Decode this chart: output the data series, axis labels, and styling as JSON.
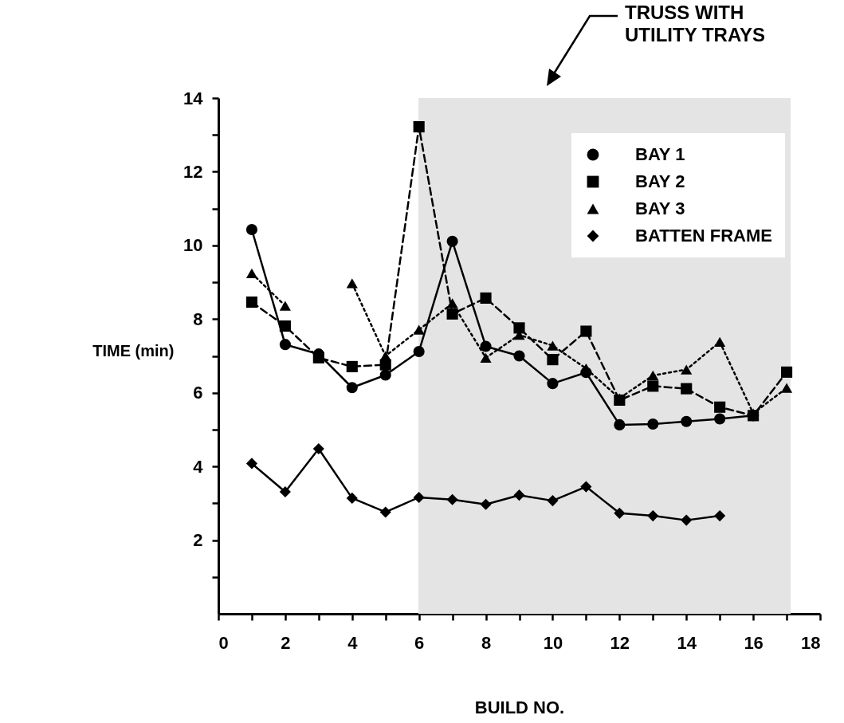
{
  "chart_data": {
    "type": "line",
    "xlabel": "BUILD NO.",
    "ylabel": "TIME (min)",
    "x": [
      1,
      2,
      3,
      4,
      5,
      6,
      7,
      8,
      9,
      10,
      11,
      12,
      13,
      14,
      15,
      16,
      17
    ],
    "series": [
      {
        "name": "BAY 1",
        "color": "#000000",
        "marker": "circle",
        "line_style": "solid",
        "values": [
          10.43,
          7.31,
          7.05,
          6.14,
          6.48,
          7.12,
          10.11,
          7.26,
          7.0,
          6.25,
          6.55,
          5.13,
          5.15,
          5.22,
          5.29,
          5.38,
          null
        ]
      },
      {
        "name": "BAY 2",
        "color": "#000000",
        "marker": "square",
        "line_style": "dashed",
        "values": [
          8.46,
          7.81,
          6.95,
          6.71,
          6.76,
          13.22,
          8.14,
          8.57,
          7.76,
          6.9,
          7.67,
          5.8,
          6.18,
          6.11,
          5.61,
          5.38,
          6.56
        ]
      },
      {
        "name": "BAY 3",
        "color": "#000000",
        "marker": "triangle",
        "line_style": "dotted",
        "values": [
          9.24,
          8.36,
          null,
          8.97,
          7.0,
          7.71,
          8.43,
          6.95,
          7.57,
          7.28,
          6.66,
          5.85,
          6.47,
          6.63,
          7.38,
          5.44,
          6.13
        ]
      },
      {
        "name": "BATTEN FRAME",
        "color": "#000000",
        "marker": "diamond",
        "line_style": "solid",
        "values": [
          4.08,
          3.31,
          4.48,
          3.14,
          2.76,
          3.16,
          3.1,
          2.97,
          3.22,
          3.07,
          3.45,
          2.73,
          2.66,
          2.54,
          2.66,
          null,
          null
        ]
      }
    ],
    "bands": [
      {
        "axis": "x",
        "from": 6,
        "to": 17.1,
        "color": "#e4e4e4"
      }
    ],
    "annotations": [
      "TRUSS WITH UTILITY TRAYS"
    ],
    "xlim": [
      0,
      18
    ],
    "xticks": [
      0,
      {
        "value": 1,
        "label": null
      },
      2,
      {
        "value": 3,
        "label": null
      },
      4,
      {
        "value": 5,
        "label": null
      },
      6,
      {
        "value": 7,
        "label": null
      },
      8,
      {
        "value": 9,
        "label": null
      },
      10,
      {
        "value": 11,
        "label": null
      },
      12,
      {
        "value": 13,
        "label": null
      },
      14,
      {
        "value": 15,
        "label": null
      },
      16,
      {
        "value": 17,
        "label": null
      },
      18
    ],
    "ylim": [
      0,
      14
    ],
    "yticks": [
      {
        "value": 1,
        "label": null
      },
      2,
      {
        "value": 3,
        "label": null
      },
      4,
      {
        "value": 5,
        "label": null
      },
      6,
      {
        "value": 7,
        "label": null
      },
      8,
      {
        "value": 9,
        "label": null
      },
      10,
      {
        "value": 11,
        "label": null
      },
      12,
      {
        "value": 13,
        "label": null
      },
      14
    ],
    "grid": false,
    "legend": "top right"
  }
}
